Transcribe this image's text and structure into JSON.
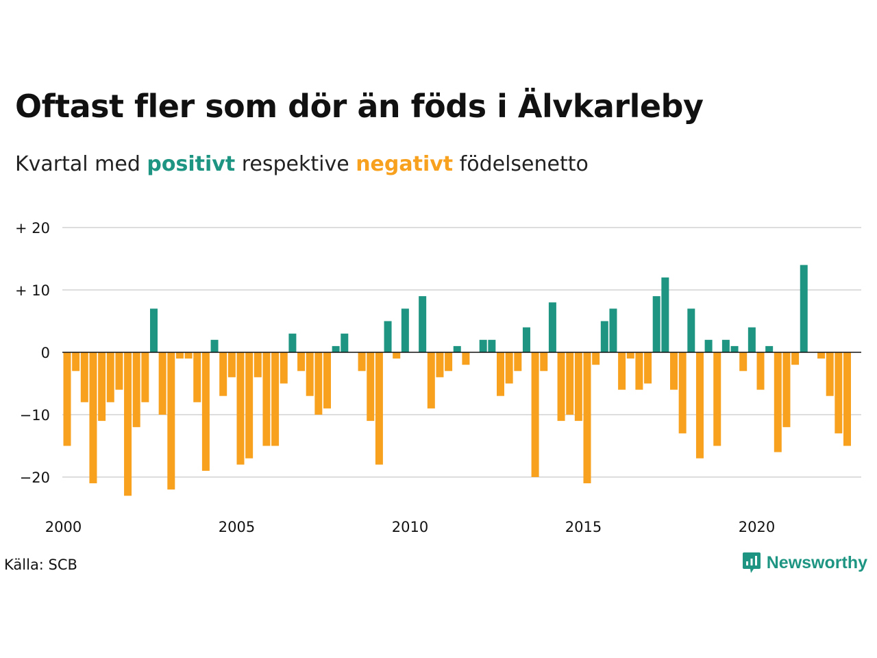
{
  "title": "Oftast fler som dör än föds i Älvkarleby",
  "subtitle": {
    "part1": "Kvartal med ",
    "positive_word": "positivt",
    "part2": " respektive ",
    "negative_word": "negativt",
    "part3": " födelsenetto"
  },
  "source": "Källa: SCB",
  "brand": {
    "name": "Newsworthy",
    "icon": "newsworthy-logo-icon"
  },
  "colors": {
    "positive": "#1e9582",
    "negative": "#f7a11f",
    "grid": "#dddddd",
    "zero": "#111111"
  },
  "chart_data": {
    "type": "bar",
    "x_start": 2000,
    "periods_per_year": 4,
    "ylim": [
      -25,
      20
    ],
    "y_ticks": [
      20,
      10,
      0,
      -10,
      -20
    ],
    "y_tick_labels": [
      "+ 20",
      "+ 10",
      "0",
      "−10",
      "−20"
    ],
    "x_ticks": [
      2000,
      2005,
      2010,
      2015,
      2020
    ],
    "x_tick_labels": [
      "2000",
      "2005",
      "2010",
      "2015",
      "2020"
    ],
    "grid": true,
    "values": [
      -15,
      -3,
      -8,
      -21,
      -11,
      -8,
      -6,
      -23,
      -12,
      -8,
      7,
      -10,
      -22,
      -1,
      -1,
      -8,
      -19,
      2,
      -7,
      -4,
      -18,
      -17,
      -4,
      -15,
      -15,
      -5,
      3,
      -3,
      -7,
      -10,
      -9,
      1,
      3,
      0,
      -3,
      -11,
      -18,
      5,
      -1,
      7,
      0,
      9,
      -9,
      -4,
      -3,
      1,
      -2,
      0,
      2,
      2,
      -7,
      -5,
      -3,
      4,
      -20,
      -3,
      8,
      -11,
      -10,
      -11,
      -21,
      -2,
      5,
      7,
      -6,
      -1,
      -6,
      -5,
      9,
      12,
      -6,
      -13,
      7,
      -17,
      2,
      -15,
      2,
      1,
      -3,
      4,
      -6,
      1,
      -16,
      -12,
      -2,
      14,
      0,
      -1,
      -7,
      -13,
      -15
    ]
  }
}
